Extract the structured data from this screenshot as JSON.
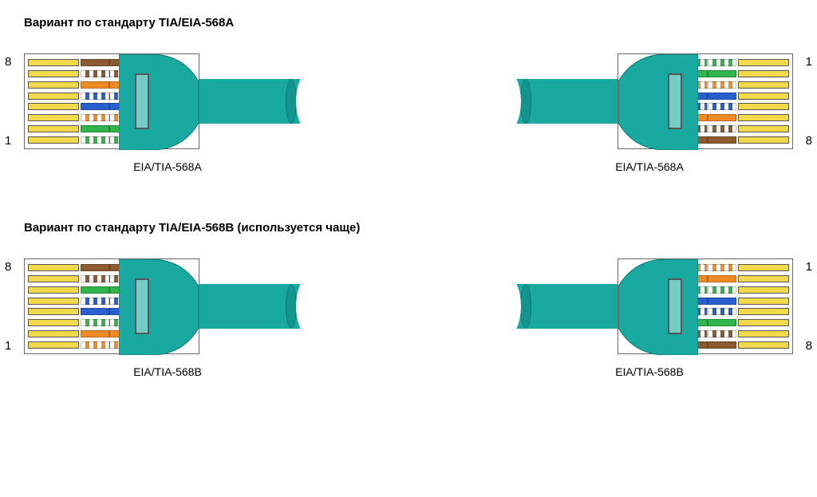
{
  "variant_a": {
    "title": "Вариант по стандарту TIA/EIA-568A",
    "caption_left": "EIA/TIA-568A",
    "caption_right": "EIA/TIA-568A",
    "pin_top_left": "8",
    "pin_bot_left": "1",
    "pin_top_right": "1",
    "pin_bot_right": "8",
    "wire_order_568a": [
      {
        "color": "#8c5a2f",
        "striped": false,
        "name": "brown"
      },
      {
        "color": "#8c5a2f",
        "striped": true,
        "name": "white-brown"
      },
      {
        "color": "#f08a24",
        "striped": false,
        "name": "orange"
      },
      {
        "color": "#2a5fd0",
        "striped": true,
        "name": "white-blue"
      },
      {
        "color": "#2a5fd0",
        "striped": false,
        "name": "blue"
      },
      {
        "color": "#f08a24",
        "striped": true,
        "name": "white-orange"
      },
      {
        "color": "#2fb54a",
        "striped": false,
        "name": "green"
      },
      {
        "color": "#2fb54a",
        "striped": true,
        "name": "white-green"
      }
    ]
  },
  "variant_b": {
    "title": "Вариант по стандарту TIA/EIA-568B (используется чаще)",
    "caption_left": "EIA/TIA-568B",
    "caption_right": "EIA/TIA-568B",
    "pin_top_left": "8",
    "pin_bot_left": "1",
    "pin_top_right": "1",
    "pin_bot_right": "8",
    "wire_order_568b": [
      {
        "color": "#8c5a2f",
        "striped": false,
        "name": "brown"
      },
      {
        "color": "#8c5a2f",
        "striped": true,
        "name": "white-brown"
      },
      {
        "color": "#2fb54a",
        "striped": false,
        "name": "green"
      },
      {
        "color": "#2a5fd0",
        "striped": true,
        "name": "white-blue"
      },
      {
        "color": "#2a5fd0",
        "striped": false,
        "name": "blue"
      },
      {
        "color": "#2fb54a",
        "striped": true,
        "name": "white-green"
      },
      {
        "color": "#f08a24",
        "striped": false,
        "name": "orange"
      },
      {
        "color": "#f08a24",
        "striped": true,
        "name": "white-orange"
      }
    ]
  },
  "style": {
    "cable_color": "#1aa9a0",
    "pin_color": "#f2d94c",
    "background": "#ffffff",
    "title_fontsize": 15,
    "caption_fontsize": 14,
    "plug_width": 220,
    "plug_height": 120,
    "cable_stub_width": 140,
    "cable_stub_height": 56
  }
}
